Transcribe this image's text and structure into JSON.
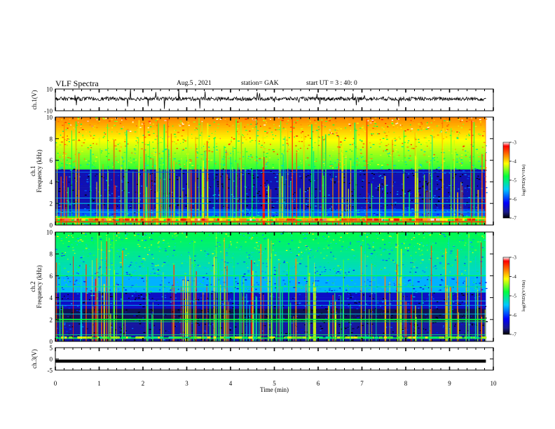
{
  "header": {
    "title": "VLF Spectra",
    "date": "Aug.5 , 2021",
    "station": "station= GAK",
    "start": "start UT = 3 : 40: 0"
  },
  "chart_data": [
    {
      "type": "line",
      "panel": "ch1-waveform",
      "ylabel": "ch.1(V)",
      "ylim": [
        -10,
        10
      ],
      "yticks": [
        "10",
        "-10"
      ],
      "xlim": [
        0,
        10
      ],
      "style": "noisy waveform centered near 0 V"
    },
    {
      "type": "heatmap",
      "panel": "ch1-spectrogram",
      "ylabel": "ch.1 Frequency (kHz)",
      "ylim": [
        0,
        10
      ],
      "yticks": [
        "0",
        "2",
        "4",
        "6",
        "8",
        "10"
      ],
      "xlim": [
        0,
        10
      ],
      "colorbar": {
        "label": "log(PSD)(V²/Hz)",
        "range": [
          -7,
          -3
        ],
        "ticks": [
          "-3",
          "-4",
          "-5",
          "-6",
          "-7"
        ]
      }
    },
    {
      "type": "heatmap",
      "panel": "ch2-spectrogram",
      "ylabel": "ch.2 Frequency (kHz)",
      "ylim": [
        0,
        10
      ],
      "yticks": [
        "0",
        "2",
        "4",
        "6",
        "8",
        "10"
      ],
      "xlim": [
        0,
        10
      ],
      "colorbar": {
        "label": "log(PSD)(V²/Hz)",
        "range": [
          -7,
          -3
        ],
        "ticks": [
          "-3",
          "-4",
          "-5",
          "-6",
          "-7"
        ]
      }
    },
    {
      "type": "line",
      "panel": "ch3-waveform",
      "ylabel": "ch.3(V)",
      "ylim": [
        -5,
        5
      ],
      "yticks": [
        "5",
        "0",
        "-5"
      ],
      "xlim": [
        0,
        10
      ],
      "style": "flat line near -1 V"
    }
  ],
  "xaxis": {
    "label": "Time (min)",
    "ticks": [
      "0",
      "1",
      "2",
      "3",
      "4",
      "5",
      "6",
      "7",
      "8",
      "9",
      "10"
    ]
  }
}
